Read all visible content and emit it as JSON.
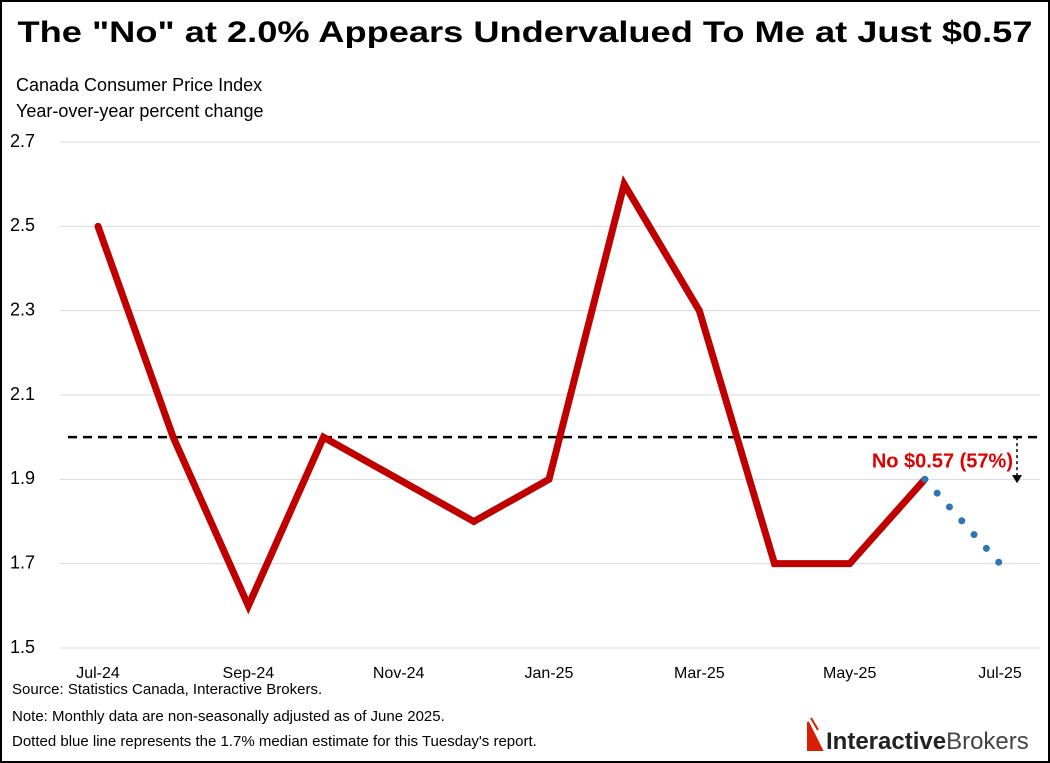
{
  "chart_data": {
    "type": "line",
    "title": "The \"No\" at 2.0% Appears Undervalued To Me at Just $0.57",
    "subtitle": [
      "Canada Consumer Price Index",
      "Year-over-year percent change"
    ],
    "categories": [
      "Jul-24",
      null,
      "Sep-24",
      null,
      "Nov-24",
      null,
      "Jan-25",
      null,
      "Mar-25",
      null,
      "May-25",
      null,
      "Jul-25"
    ],
    "series": [
      {
        "name": "Canada CPI",
        "color": "#c00000",
        "style": "solid",
        "values": [
          2.5,
          2.0,
          1.6,
          2.0,
          1.9,
          1.8,
          1.9,
          2.6,
          2.3,
          1.7,
          1.7,
          1.9,
          null
        ]
      },
      {
        "name": "Median estimate",
        "color": "#2e75b6",
        "style": "dotted",
        "values": [
          null,
          null,
          null,
          null,
          null,
          null,
          null,
          null,
          null,
          null,
          null,
          1.9,
          1.7
        ]
      }
    ],
    "reference_line": 2.0,
    "annotation": "No $0.57 (57%)",
    "ylim": [
      1.5,
      2.7
    ],
    "yticks": [
      1.5,
      1.7,
      1.9,
      2.1,
      2.3,
      2.5,
      2.7
    ],
    "grid": true,
    "notes": [
      "Source: Statistics Canada, Interactive Brokers.",
      "Note: Monthly data are non-seasonally adjusted as of June 2025.",
      "Dotted blue line represents the 1.7% median estimate for this Tuesday's report."
    ],
    "logo": {
      "bold": "Interactive",
      "light": "Brokers"
    }
  }
}
